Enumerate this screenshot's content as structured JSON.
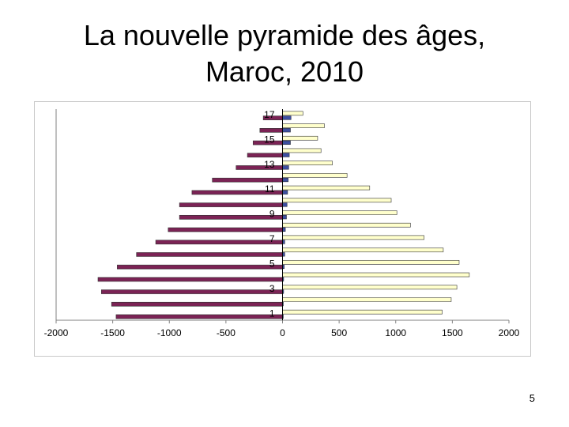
{
  "slide": {
    "title_line1": "La nouvelle pyramide des âges,",
    "title_line2": "Maroc, 2010",
    "page_number": "5"
  },
  "chart_data": {
    "type": "bar",
    "orientation": "horizontal",
    "categories": [
      "1",
      "2",
      "3",
      "4",
      "5",
      "6",
      "7",
      "8",
      "9",
      "10",
      "11",
      "12",
      "13",
      "14",
      "15",
      "16",
      "17"
    ],
    "category_labels_shown": [
      "1",
      "3",
      "5",
      "7",
      "9",
      "11",
      "13",
      "15",
      "17"
    ],
    "series": [
      {
        "color": "#7b2355",
        "values": [
          -1470,
          -1510,
          -1600,
          -1630,
          -1460,
          -1290,
          -1120,
          -1010,
          -910,
          -910,
          -800,
          -620,
          -410,
          -310,
          -260,
          -200,
          -170
        ]
      },
      {
        "color": "#ffffcc",
        "values": [
          1410,
          1490,
          1540,
          1650,
          1560,
          1420,
          1250,
          1130,
          1010,
          960,
          770,
          570,
          440,
          340,
          310,
          370,
          180
        ]
      },
      {
        "color": "#3d4fa0",
        "values": [
          5,
          5,
          10,
          10,
          15,
          20,
          20,
          25,
          35,
          40,
          45,
          50,
          55,
          60,
          70,
          70,
          75
        ]
      }
    ],
    "xlim": [
      -2000,
      2000
    ],
    "xticks": [
      "-2000",
      "-1500",
      "-1000",
      "-500",
      "0",
      "500",
      "1000",
      "1500",
      "2000"
    ],
    "grid": false,
    "legend": "none"
  }
}
